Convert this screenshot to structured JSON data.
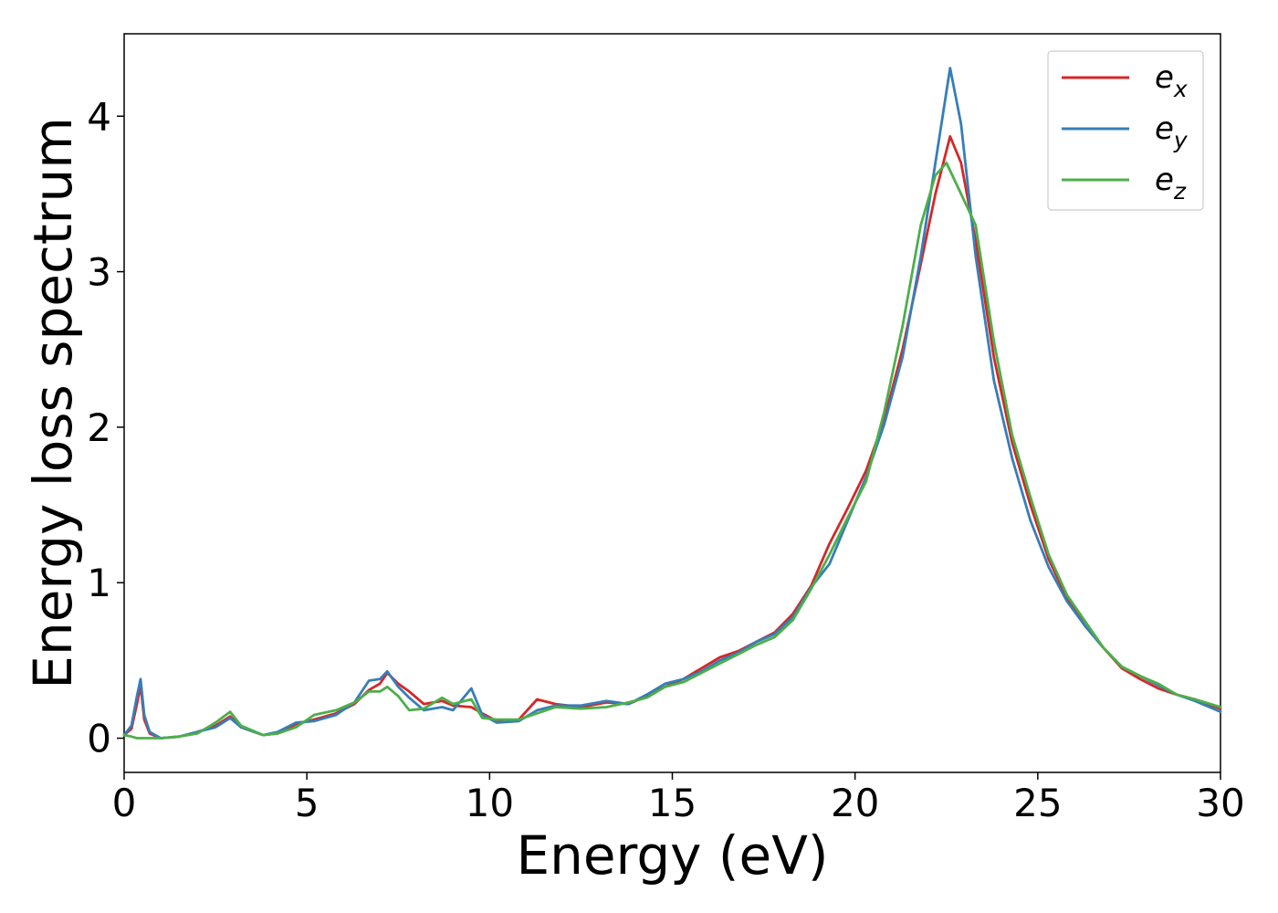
{
  "chart_data": {
    "type": "line",
    "title": "",
    "xlabel": "Energy (eV)",
    "ylabel": "Energy loss spectrum",
    "xlim": [
      0,
      30
    ],
    "ylim": [
      -0.22,
      4.53
    ],
    "xticks": [
      0,
      5,
      10,
      15,
      20,
      25,
      30
    ],
    "yticks": [
      0,
      1,
      2,
      3,
      4
    ],
    "grid": false,
    "legend": "top-right",
    "series": [
      {
        "name": "ex",
        "label_base": "e",
        "label_sub": "x",
        "color": "#d62728",
        "points": [
          [
            0,
            0.02
          ],
          [
            0.2,
            0.06
          ],
          [
            0.35,
            0.22
          ],
          [
            0.45,
            0.34
          ],
          [
            0.55,
            0.12
          ],
          [
            0.7,
            0.03
          ],
          [
            1,
            0.0
          ],
          [
            1.5,
            0.01
          ],
          [
            2,
            0.04
          ],
          [
            2.5,
            0.08
          ],
          [
            2.9,
            0.14
          ],
          [
            3.2,
            0.07
          ],
          [
            3.8,
            0.02
          ],
          [
            4.2,
            0.03
          ],
          [
            4.7,
            0.09
          ],
          [
            5.2,
            0.12
          ],
          [
            5.8,
            0.16
          ],
          [
            6.3,
            0.22
          ],
          [
            6.7,
            0.31
          ],
          [
            7.0,
            0.35
          ],
          [
            7.2,
            0.42
          ],
          [
            7.5,
            0.35
          ],
          [
            7.8,
            0.3
          ],
          [
            8.2,
            0.22
          ],
          [
            8.7,
            0.24
          ],
          [
            9.0,
            0.21
          ],
          [
            9.5,
            0.2
          ],
          [
            9.8,
            0.16
          ],
          [
            10.2,
            0.11
          ],
          [
            10.8,
            0.12
          ],
          [
            11.3,
            0.25
          ],
          [
            11.8,
            0.22
          ],
          [
            12.5,
            0.2
          ],
          [
            13.2,
            0.23
          ],
          [
            13.8,
            0.22
          ],
          [
            14.3,
            0.27
          ],
          [
            14.8,
            0.33
          ],
          [
            15.3,
            0.38
          ],
          [
            15.8,
            0.45
          ],
          [
            16.3,
            0.52
          ],
          [
            16.8,
            0.56
          ],
          [
            17.3,
            0.62
          ],
          [
            17.8,
            0.68
          ],
          [
            18.3,
            0.8
          ],
          [
            18.8,
            0.98
          ],
          [
            19.3,
            1.25
          ],
          [
            19.8,
            1.48
          ],
          [
            20.3,
            1.72
          ],
          [
            20.8,
            2.05
          ],
          [
            21.3,
            2.5
          ],
          [
            21.8,
            3.05
          ],
          [
            22.2,
            3.5
          ],
          [
            22.6,
            3.87
          ],
          [
            22.9,
            3.7
          ],
          [
            23.3,
            3.2
          ],
          [
            23.8,
            2.45
          ],
          [
            24.3,
            1.9
          ],
          [
            24.8,
            1.5
          ],
          [
            25.3,
            1.15
          ],
          [
            25.8,
            0.9
          ],
          [
            26.3,
            0.72
          ],
          [
            26.8,
            0.58
          ],
          [
            27.3,
            0.45
          ],
          [
            27.8,
            0.38
          ],
          [
            28.3,
            0.32
          ],
          [
            28.8,
            0.28
          ],
          [
            29.3,
            0.25
          ],
          [
            30,
            0.19
          ]
        ]
      },
      {
        "name": "ey",
        "label_base": "e",
        "label_sub": "y",
        "color": "#377eb8",
        "points": [
          [
            0,
            0.02
          ],
          [
            0.2,
            0.08
          ],
          [
            0.35,
            0.27
          ],
          [
            0.45,
            0.38
          ],
          [
            0.55,
            0.15
          ],
          [
            0.7,
            0.04
          ],
          [
            1,
            0.0
          ],
          [
            1.5,
            0.01
          ],
          [
            2,
            0.04
          ],
          [
            2.5,
            0.07
          ],
          [
            2.9,
            0.13
          ],
          [
            3.2,
            0.07
          ],
          [
            3.8,
            0.02
          ],
          [
            4.2,
            0.04
          ],
          [
            4.7,
            0.1
          ],
          [
            5.2,
            0.11
          ],
          [
            5.8,
            0.15
          ],
          [
            6.3,
            0.23
          ],
          [
            6.7,
            0.37
          ],
          [
            7.0,
            0.38
          ],
          [
            7.2,
            0.43
          ],
          [
            7.5,
            0.33
          ],
          [
            7.8,
            0.26
          ],
          [
            8.2,
            0.18
          ],
          [
            8.7,
            0.2
          ],
          [
            9.0,
            0.18
          ],
          [
            9.5,
            0.32
          ],
          [
            9.8,
            0.15
          ],
          [
            10.2,
            0.1
          ],
          [
            10.8,
            0.11
          ],
          [
            11.3,
            0.18
          ],
          [
            11.8,
            0.21
          ],
          [
            12.5,
            0.21
          ],
          [
            13.2,
            0.24
          ],
          [
            13.8,
            0.22
          ],
          [
            14.3,
            0.28
          ],
          [
            14.8,
            0.35
          ],
          [
            15.3,
            0.38
          ],
          [
            15.8,
            0.43
          ],
          [
            16.3,
            0.5
          ],
          [
            16.8,
            0.55
          ],
          [
            17.3,
            0.62
          ],
          [
            17.8,
            0.67
          ],
          [
            18.3,
            0.78
          ],
          [
            18.8,
            0.97
          ],
          [
            19.3,
            1.12
          ],
          [
            19.8,
            1.4
          ],
          [
            20.3,
            1.68
          ],
          [
            20.8,
            2.02
          ],
          [
            21.3,
            2.45
          ],
          [
            21.8,
            3.1
          ],
          [
            22.2,
            3.7
          ],
          [
            22.6,
            4.31
          ],
          [
            22.9,
            3.95
          ],
          [
            23.3,
            3.1
          ],
          [
            23.8,
            2.3
          ],
          [
            24.3,
            1.8
          ],
          [
            24.8,
            1.4
          ],
          [
            25.3,
            1.1
          ],
          [
            25.8,
            0.88
          ],
          [
            26.3,
            0.72
          ],
          [
            26.8,
            0.58
          ],
          [
            27.3,
            0.46
          ],
          [
            27.8,
            0.4
          ],
          [
            28.3,
            0.34
          ],
          [
            28.8,
            0.28
          ],
          [
            29.3,
            0.24
          ],
          [
            30,
            0.17
          ]
        ]
      },
      {
        "name": "ez",
        "label_base": "e",
        "label_sub": "z",
        "color": "#4daf4a",
        "points": [
          [
            0,
            0.02
          ],
          [
            0.2,
            0.01
          ],
          [
            0.35,
            0.0
          ],
          [
            0.5,
            0.0
          ],
          [
            0.7,
            0.0
          ],
          [
            1,
            0.0
          ],
          [
            1.5,
            0.01
          ],
          [
            2,
            0.03
          ],
          [
            2.5,
            0.1
          ],
          [
            2.9,
            0.17
          ],
          [
            3.2,
            0.08
          ],
          [
            3.8,
            0.02
          ],
          [
            4.2,
            0.03
          ],
          [
            4.7,
            0.07
          ],
          [
            5.2,
            0.15
          ],
          [
            5.8,
            0.18
          ],
          [
            6.3,
            0.23
          ],
          [
            6.7,
            0.3
          ],
          [
            7.0,
            0.3
          ],
          [
            7.2,
            0.33
          ],
          [
            7.5,
            0.27
          ],
          [
            7.8,
            0.18
          ],
          [
            8.2,
            0.19
          ],
          [
            8.7,
            0.26
          ],
          [
            9.0,
            0.22
          ],
          [
            9.5,
            0.25
          ],
          [
            9.8,
            0.13
          ],
          [
            10.2,
            0.12
          ],
          [
            10.8,
            0.12
          ],
          [
            11.3,
            0.16
          ],
          [
            11.8,
            0.2
          ],
          [
            12.5,
            0.19
          ],
          [
            13.2,
            0.2
          ],
          [
            13.8,
            0.23
          ],
          [
            14.3,
            0.26
          ],
          [
            14.8,
            0.33
          ],
          [
            15.3,
            0.36
          ],
          [
            15.8,
            0.42
          ],
          [
            16.3,
            0.48
          ],
          [
            16.8,
            0.54
          ],
          [
            17.3,
            0.6
          ],
          [
            17.8,
            0.65
          ],
          [
            18.3,
            0.76
          ],
          [
            18.8,
            0.96
          ],
          [
            19.3,
            1.18
          ],
          [
            19.8,
            1.42
          ],
          [
            20.3,
            1.65
          ],
          [
            20.8,
            2.1
          ],
          [
            21.3,
            2.65
          ],
          [
            21.8,
            3.3
          ],
          [
            22.2,
            3.62
          ],
          [
            22.5,
            3.7
          ],
          [
            22.9,
            3.5
          ],
          [
            23.3,
            3.3
          ],
          [
            23.8,
            2.55
          ],
          [
            24.3,
            1.95
          ],
          [
            24.8,
            1.55
          ],
          [
            25.3,
            1.18
          ],
          [
            25.8,
            0.92
          ],
          [
            26.3,
            0.75
          ],
          [
            26.8,
            0.58
          ],
          [
            27.3,
            0.46
          ],
          [
            27.8,
            0.4
          ],
          [
            28.3,
            0.35
          ],
          [
            28.8,
            0.28
          ],
          [
            29.3,
            0.25
          ],
          [
            30,
            0.2
          ]
        ]
      }
    ]
  }
}
